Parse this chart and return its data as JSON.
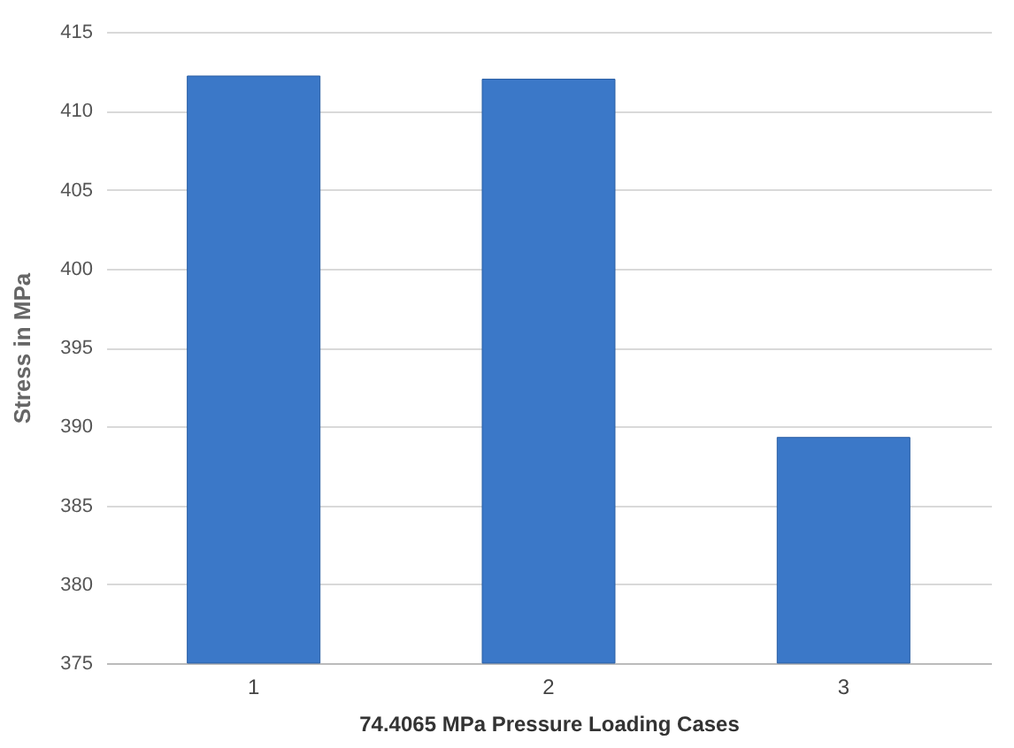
{
  "chart_data": {
    "type": "bar",
    "xlabel": "74.4065 MPa Pressure Loading Cases",
    "ylabel": "Stress in MPa",
    "categories": [
      "1",
      "2",
      "3"
    ],
    "values": [
      412.2,
      412.0,
      389.3
    ],
    "color": "#3b78c8",
    "ylim": [
      375,
      415
    ],
    "yticks": [
      375,
      380,
      385,
      390,
      395,
      400,
      405,
      410,
      415
    ],
    "grid": "y"
  }
}
